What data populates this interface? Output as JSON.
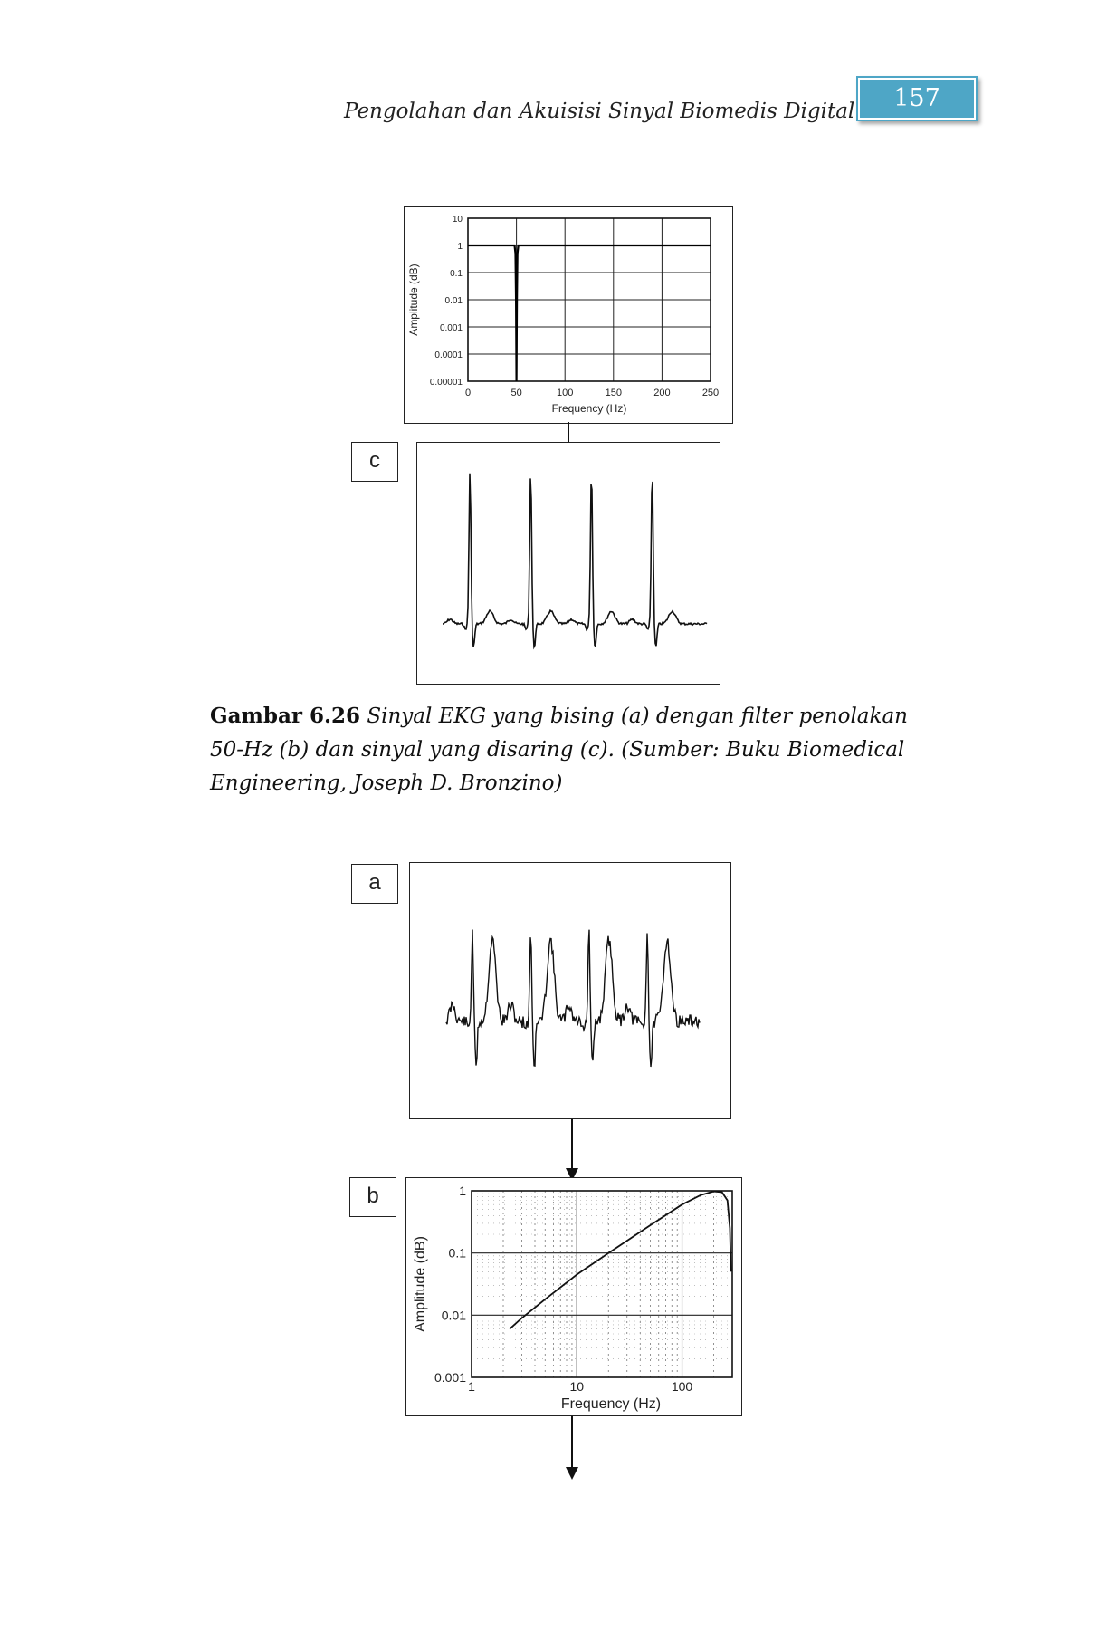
{
  "header": {
    "title": "Pengolahan dan Akuisisi Sinyal Biomedis Digital",
    "page_number": "157"
  },
  "figure_labels": {
    "a": "a",
    "b": "b",
    "c": "c"
  },
  "caption": {
    "label": "Gambar 6.26",
    "text": "Sinyal EKG yang bising (a) dengan filter penolakan 50-Hz (b) dan sinyal yang disaring (c). (Sumber: Buku Biomedical Engineering, Joseph D. Bronzino)"
  },
  "chart_data": [
    {
      "type": "line",
      "name_ref": "notch-filter-response",
      "xlabel": "Frequency (Hz)",
      "ylabel": "Amplitude (dB)",
      "x_ticks": [
        "0",
        "50",
        "100",
        "150",
        "200",
        "250"
      ],
      "y_ticks": [
        "10",
        "1",
        "0.1",
        "0.01",
        "0.001",
        "0.0001",
        "0.00001"
      ],
      "xlim": [
        0,
        250
      ],
      "ylim": [
        1e-05,
        10
      ],
      "y_scale": "log",
      "grid": true,
      "x": [
        0,
        48,
        49,
        49.5,
        50,
        50.5,
        51,
        52,
        250
      ],
      "y": [
        1,
        1,
        0.5,
        0.01,
        1e-05,
        0.01,
        0.5,
        1,
        1
      ]
    },
    {
      "type": "line",
      "name_ref": "filtered-ekg-signal",
      "xlabel": "",
      "ylabel": "",
      "beats": 4
    },
    {
      "type": "line",
      "name_ref": "noisy-ekg-signal",
      "xlabel": "",
      "ylabel": "",
      "beats": 4
    },
    {
      "type": "line",
      "name_ref": "filter-frequency-response",
      "xlabel": "Frequency (Hz)",
      "ylabel": "Amplitude (dB)",
      "x_ticks": [
        "1",
        "10",
        "100"
      ],
      "y_ticks": [
        "1",
        "0.1",
        "0.01",
        "0.001"
      ],
      "x_scale": "log",
      "y_scale": "log",
      "xlim": [
        1,
        300
      ],
      "ylim": [
        0.001,
        1
      ],
      "grid": true,
      "x": [
        2.3,
        3,
        5,
        10,
        20,
        50,
        100,
        150,
        200,
        240,
        270,
        285,
        292
      ],
      "y": [
        0.006,
        0.009,
        0.018,
        0.045,
        0.1,
        0.28,
        0.6,
        0.85,
        0.98,
        0.95,
        0.7,
        0.25,
        0.05
      ]
    }
  ]
}
